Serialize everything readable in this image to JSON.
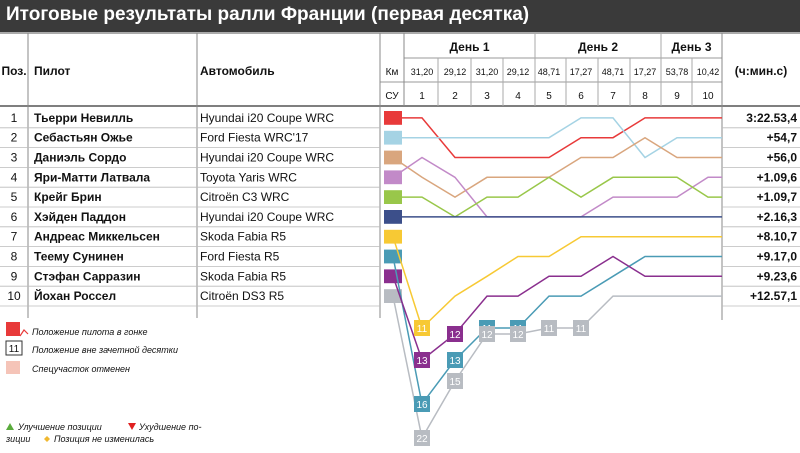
{
  "title": "Итоговые результаты ралли Франции (первая десятка)",
  "headers": {
    "pos": "Поз.",
    "driver": "Пилот",
    "car": "Автомобиль",
    "km": "Км",
    "su": "СУ",
    "time": "(ч:мин.с)"
  },
  "days": [
    {
      "label": "День 1",
      "from": 1,
      "to": 4
    },
    {
      "label": "День 2",
      "from": 5,
      "to": 8
    },
    {
      "label": "День 3",
      "from": 9,
      "to": 10
    }
  ],
  "stages": [
    {
      "num": "1",
      "km": "31,20"
    },
    {
      "num": "2",
      "km": "29,12"
    },
    {
      "num": "3",
      "km": "31,20"
    },
    {
      "num": "4",
      "km": "29,12"
    },
    {
      "num": "5",
      "km": "48,71"
    },
    {
      "num": "6",
      "km": "17,27"
    },
    {
      "num": "7",
      "km": "48,71"
    },
    {
      "num": "8",
      "km": "17,27"
    },
    {
      "num": "9",
      "km": "53,78"
    },
    {
      "num": "10",
      "km": "10,42"
    }
  ],
  "rows": [
    {
      "pos": "1",
      "driver": "Тьерри Невилль",
      "car": "Hyundai i20 Coupe WRC",
      "time": "3:22.53,4",
      "color": "#e83a3a"
    },
    {
      "pos": "2",
      "driver": "Себастьян Ожье",
      "car": "Ford Fiesta WRC'17",
      "time": "+54,7",
      "color": "#a5d3e4"
    },
    {
      "pos": "3",
      "driver": "Даниэль Сордо",
      "car": "Hyundai i20 Coupe WRC",
      "time": "+56,0",
      "color": "#d9a67e"
    },
    {
      "pos": "4",
      "driver": "Яри-Матти Латвала",
      "car": "Toyota Yaris WRC",
      "time": "+1.09,6",
      "color": "#c28ac8"
    },
    {
      "pos": "5",
      "driver": "Крейг Брин",
      "car": "Citroën C3 WRC",
      "time": "+1.09,7",
      "color": "#99c74a"
    },
    {
      "pos": "6",
      "driver": "Хэйден Паддон",
      "car": "Hyundai i20 Coupe WRC",
      "time": "+2.16,3",
      "color": "#3c4f8a"
    },
    {
      "pos": "7",
      "driver": "Андреас Миккельсен",
      "car": "Skoda Fabia R5",
      "time": "+8.10,7",
      "color": "#f7c934"
    },
    {
      "pos": "8",
      "driver": "Теему Сунинен",
      "car": "Ford Fiesta R5",
      "time": "+9.17,0",
      "color": "#4a9bb5"
    },
    {
      "pos": "9",
      "driver": "Стэфан Сарразин",
      "car": "Skoda Fabia R5",
      "time": "+9.23,6",
      "color": "#8a2f8e"
    },
    {
      "pos": "10",
      "driver": "Йохан Россел",
      "car": "Citroën DS3 R5",
      "time": "+12.57,1",
      "color": "#b8bcc2"
    }
  ],
  "chart_data": {
    "type": "line",
    "description_axis": "position after each stage",
    "x": [
      "1",
      "2",
      "3",
      "4",
      "5",
      "6",
      "7",
      "8",
      "9",
      "10"
    ],
    "series": [
      {
        "driver": "Тьерри Невилль",
        "color": "#e83a3a",
        "start": 1,
        "positions": [
          1,
          3,
          3,
          3,
          3,
          2,
          2,
          1,
          1,
          1
        ]
      },
      {
        "driver": "Себастьян Ожье",
        "color": "#a5d3e4",
        "start": 2,
        "positions": [
          2,
          2,
          2,
          2,
          2,
          1,
          1,
          3,
          2,
          2
        ]
      },
      {
        "driver": "Даниэль Сордо",
        "color": "#d9a67e",
        "start": 3,
        "positions": [
          4,
          5,
          4,
          4,
          4,
          3,
          3,
          2,
          3,
          3
        ]
      },
      {
        "driver": "Яри-Матти Латвала",
        "color": "#c28ac8",
        "start": 4,
        "positions": [
          3,
          4,
          6,
          6,
          6,
          6,
          5,
          5,
          5,
          4
        ]
      },
      {
        "driver": "Крейг Брин",
        "color": "#99c74a",
        "start": 5,
        "positions": [
          5,
          6,
          5,
          5,
          4,
          5,
          4,
          4,
          4,
          5
        ]
      },
      {
        "driver": "Хэйден Паддон",
        "color": "#3c4f8a",
        "start": 6,
        "positions": [
          6,
          6,
          6,
          6,
          6,
          6,
          6,
          6,
          6,
          6
        ]
      },
      {
        "driver": "Андреас Миккельсен",
        "color": "#f7c934",
        "start": 7,
        "positions": [
          11,
          10,
          9,
          8,
          8,
          7,
          7,
          7,
          7,
          7
        ]
      },
      {
        "driver": "Теему Сунинен",
        "color": "#4a9bb5",
        "start": 8,
        "positions": [
          16,
          13,
          11,
          11,
          10,
          10,
          9,
          8,
          8,
          8
        ]
      },
      {
        "driver": "Стэфан Сарразин",
        "color": "#8a2f8e",
        "start": 9,
        "positions": [
          13,
          12,
          10,
          10,
          9,
          9,
          8,
          9,
          9,
          9
        ]
      },
      {
        "driver": "Йохан Россел",
        "color": "#b8bcc2",
        "start": 10,
        "positions": [
          22,
          15,
          12,
          12,
          11,
          11,
          10,
          10,
          10,
          10
        ]
      }
    ]
  },
  "legend": {
    "position_label": "Положение пилота в гонке",
    "outside_label": "Положение вне зачетной десятки",
    "outside_sample": "11",
    "cancelled_label": "Спецучасток отменен",
    "improve_label": "Улучшение позиции",
    "worsen_label": "Ухудшение по-",
    "worsen_label2": "зиции",
    "same_label": "Позиция не изменилась",
    "improve_color": "#5aab3c",
    "worsen_color": "#e02020",
    "same_color": "#f0b830",
    "cancel_color": "#f5c4b8"
  }
}
